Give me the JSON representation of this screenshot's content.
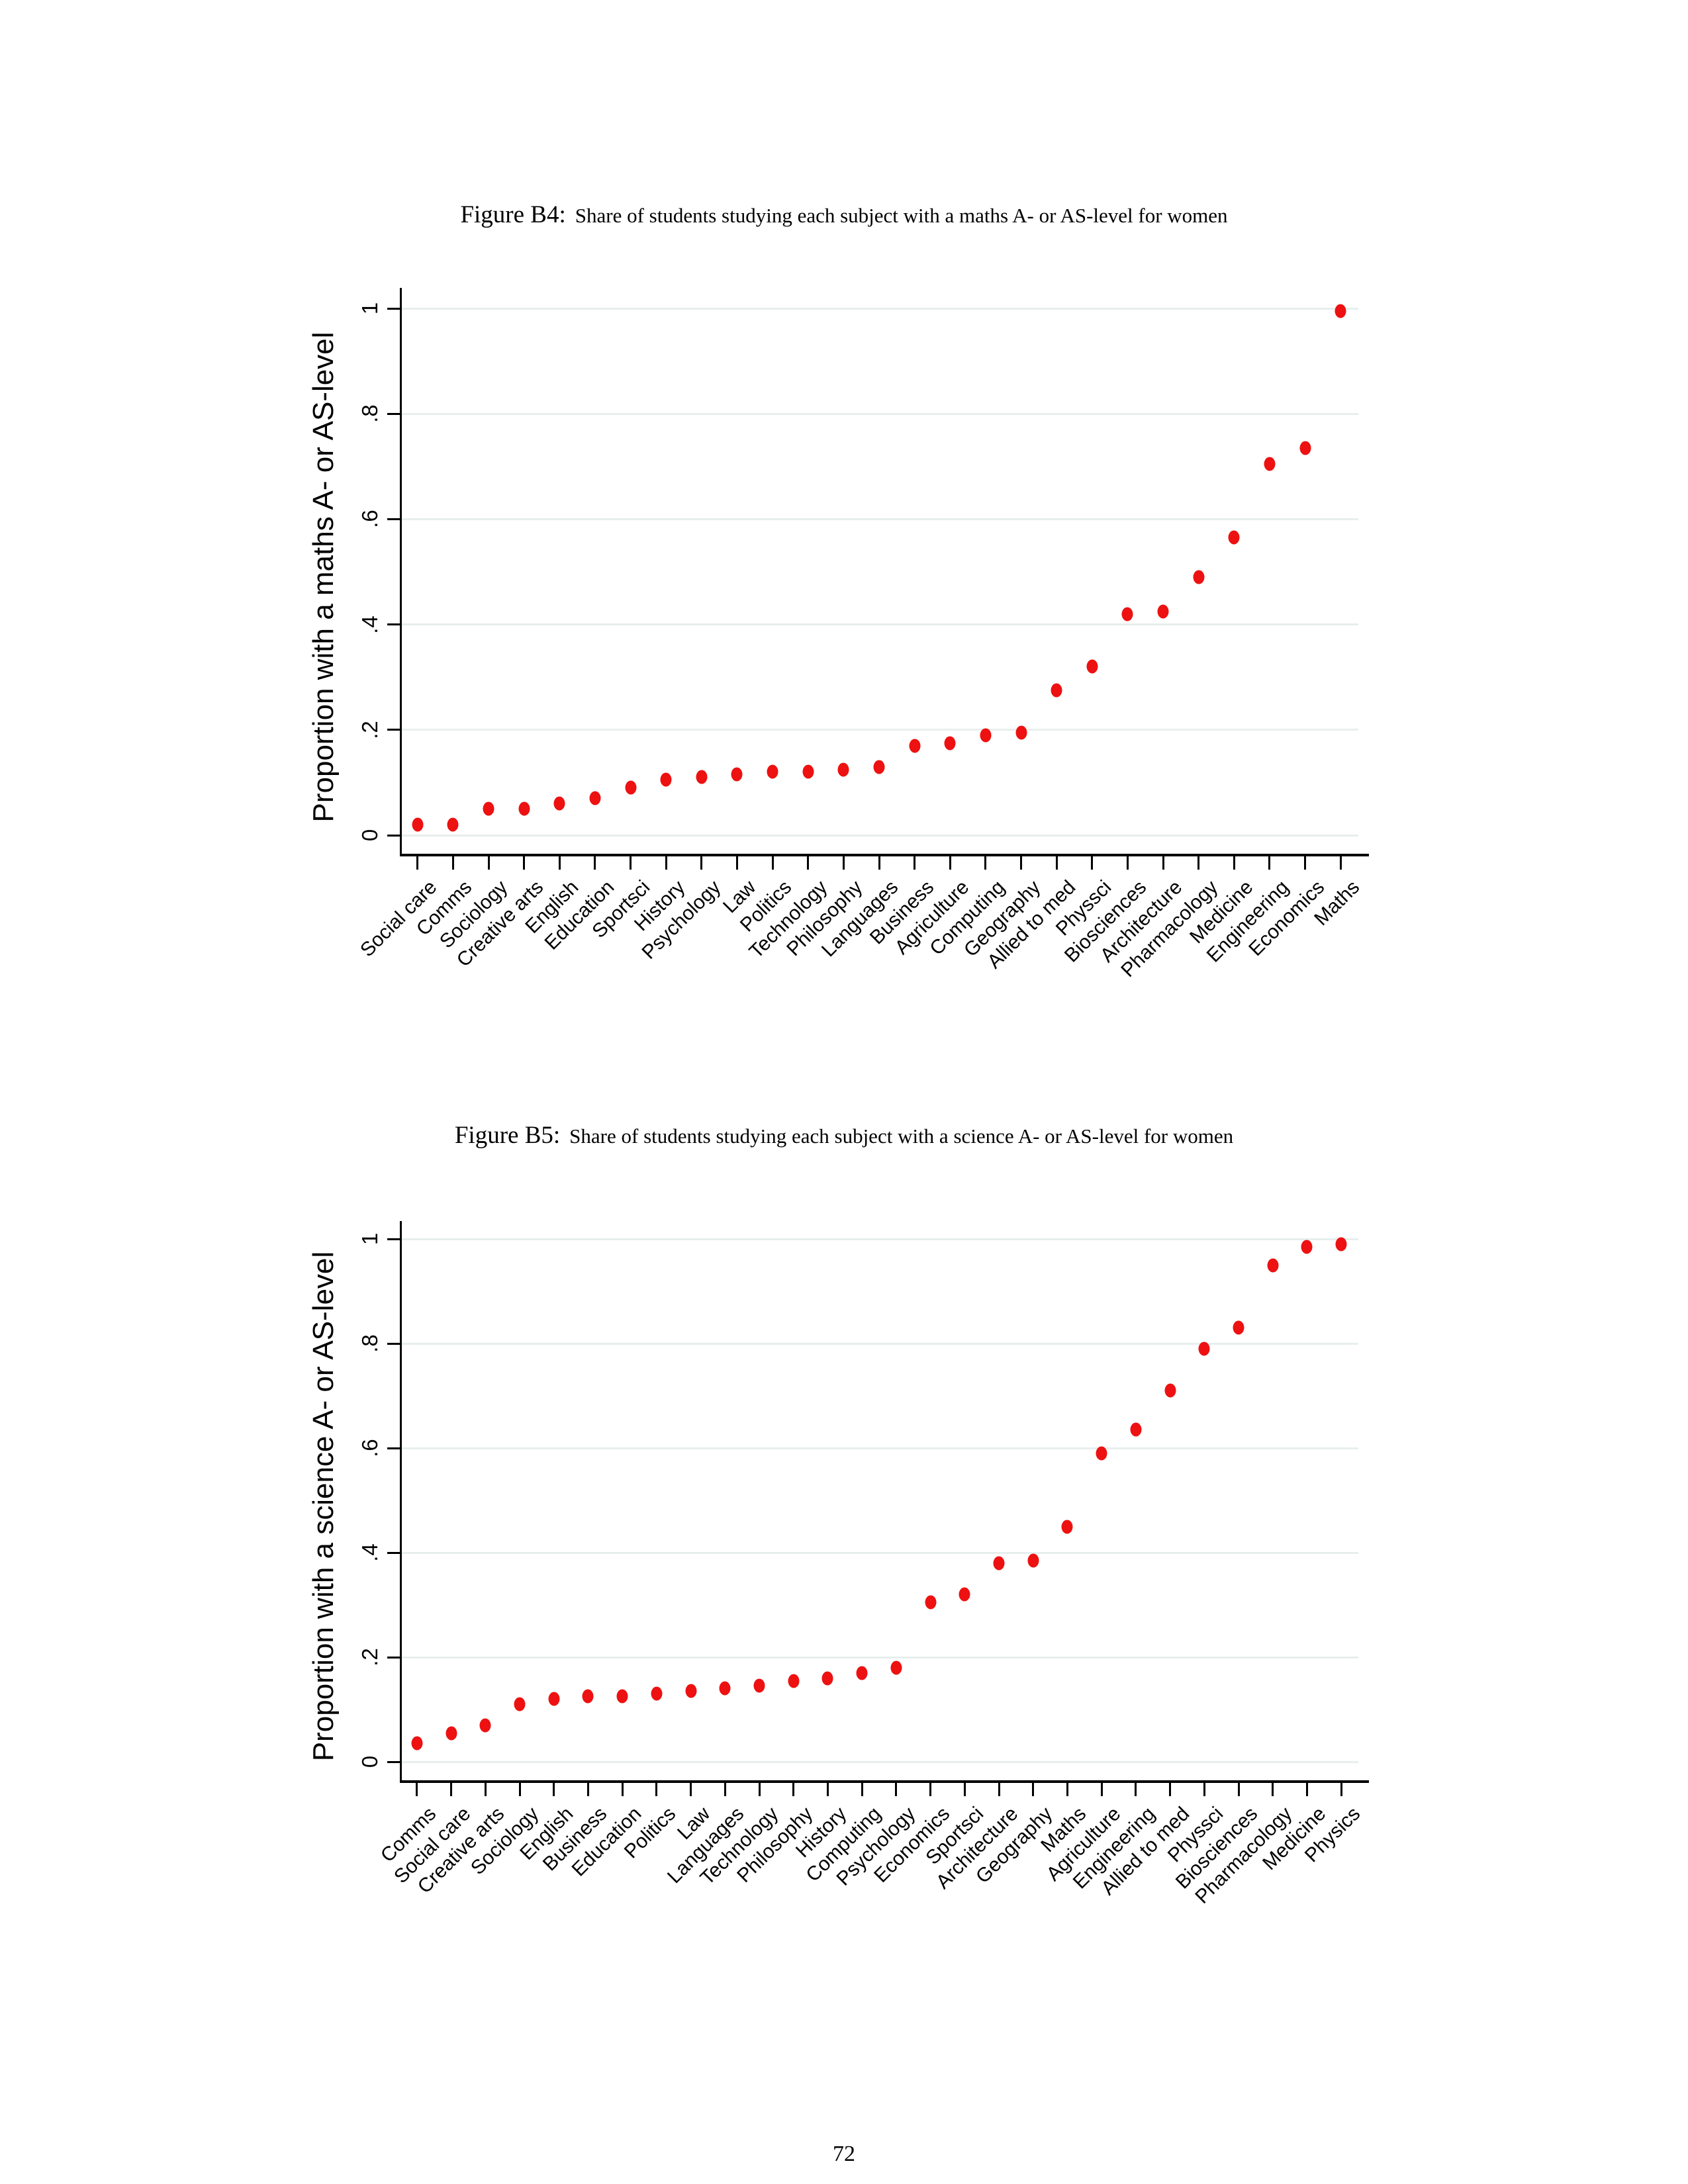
{
  "page": {
    "number": "72"
  },
  "figures": [
    {
      "title_prefix": "Figure B4:",
      "title_text": "Share of students studying each subject with a maths A- or AS-level for women"
    },
    {
      "title_prefix": "Figure B5:",
      "title_text": "Share of students studying each subject with a science A- or AS-level for women"
    }
  ],
  "chart_data": [
    {
      "type": "scatter",
      "title": "Figure B4: Share of students studying each subject with a maths A- or AS-level for women",
      "xlabel": "",
      "ylabel": "Proportion with a maths A- or AS-level",
      "ylim": [
        0,
        1
      ],
      "ytick_labels": [
        "0",
        ".2",
        ".4",
        ".6",
        ".8",
        "1"
      ],
      "ytick_values": [
        0,
        0.2,
        0.4,
        0.6,
        0.8,
        1
      ],
      "grid": true,
      "legend": "none",
      "marker_color": "#ed1111",
      "categories": [
        "Social care",
        "Comms",
        "Sociology",
        "Creative arts",
        "English",
        "Education",
        "Sportsci",
        "History",
        "Psychology",
        "Law",
        "Politics",
        "Technology",
        "Philosophy",
        "Languages",
        "Business",
        "Agriculture",
        "Computing",
        "Geography",
        "Allied to med",
        "Physsci",
        "Biosciences",
        "Architecture",
        "Pharmacology",
        "Medicine",
        "Engineering",
        "Economics",
        "Maths"
      ],
      "values": [
        0.02,
        0.02,
        0.05,
        0.05,
        0.06,
        0.07,
        0.09,
        0.105,
        0.11,
        0.115,
        0.12,
        0.12,
        0.125,
        0.13,
        0.17,
        0.175,
        0.19,
        0.195,
        0.275,
        0.32,
        0.42,
        0.425,
        0.49,
        0.565,
        0.705,
        0.735,
        0.995
      ]
    },
    {
      "type": "scatter",
      "title": "Figure B5: Share of students studying each subject with a science A- or AS-level for women",
      "xlabel": "",
      "ylabel": "Proportion with a science A- or AS-level",
      "ylim": [
        0,
        1
      ],
      "ytick_labels": [
        "0",
        ".2",
        ".4",
        ".6",
        ".8",
        "1"
      ],
      "ytick_values": [
        0,
        0.2,
        0.4,
        0.6,
        0.8,
        1
      ],
      "grid": true,
      "legend": "none",
      "marker_color": "#ed1111",
      "categories": [
        "Comms",
        "Social care",
        "Creative arts",
        "Sociology",
        "English",
        "Business",
        "Education",
        "Politics",
        "Law",
        "Languages",
        "Technology",
        "Philosophy",
        "History",
        "Computing",
        "Psychology",
        "Economics",
        "Sportsci",
        "Architecture",
        "Geography",
        "Maths",
        "Agriculture",
        "Engineering",
        "Allied to med",
        "Physsci",
        "Biosciences",
        "Pharmacology",
        "Medicine",
        "Physics"
      ],
      "values": [
        0.035,
        0.055,
        0.07,
        0.11,
        0.12,
        0.125,
        0.125,
        0.13,
        0.135,
        0.14,
        0.145,
        0.155,
        0.16,
        0.17,
        0.18,
        0.305,
        0.32,
        0.38,
        0.385,
        0.45,
        0.59,
        0.635,
        0.71,
        0.79,
        0.83,
        0.95,
        0.985,
        0.99
      ]
    }
  ]
}
